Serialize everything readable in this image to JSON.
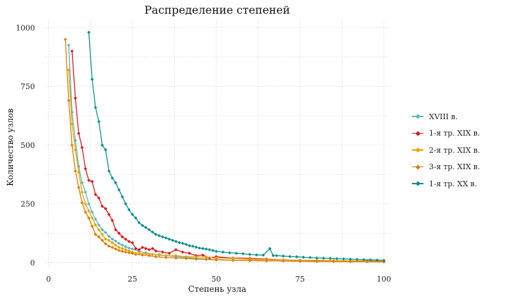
{
  "chart_data": {
    "type": "line",
    "title": "Распределение степеней",
    "xlabel": "Степень узла",
    "ylabel": "Количество узлов",
    "xlim": [
      -1,
      102
    ],
    "ylim": [
      -25,
      1030
    ],
    "x_ticks": [
      0,
      25,
      50,
      75,
      100
    ],
    "x_tick_labels": [
      "0",
      "25",
      "50",
      "75",
      "100"
    ],
    "y_ticks": [
      0,
      250,
      500,
      750,
      1000
    ],
    "y_tick_labels": [
      "0",
      "250",
      "500",
      "750",
      "1000"
    ],
    "grid": true,
    "legend_position": "right",
    "series": [
      {
        "name": "XVIII в.",
        "color": "#5ab4c4",
        "points": [
          [
            6,
            925
          ],
          [
            7,
            640
          ],
          [
            8,
            520
          ],
          [
            9,
            410
          ],
          [
            10,
            340
          ],
          [
            11,
            300
          ],
          [
            12,
            250
          ],
          [
            13,
            215
          ],
          [
            14,
            185
          ],
          [
            15,
            160
          ],
          [
            16,
            140
          ],
          [
            17,
            128
          ],
          [
            18,
            112
          ],
          [
            19,
            100
          ],
          [
            20,
            92
          ],
          [
            21,
            82
          ],
          [
            22,
            75
          ],
          [
            23,
            68
          ],
          [
            24,
            62
          ],
          [
            25,
            58
          ],
          [
            27,
            48
          ],
          [
            29,
            42
          ],
          [
            31,
            36
          ],
          [
            33,
            32
          ],
          [
            35,
            30
          ],
          [
            38,
            26
          ],
          [
            41,
            22
          ],
          [
            44,
            18
          ],
          [
            47,
            15
          ],
          [
            50,
            13
          ],
          [
            55,
            11
          ],
          [
            60,
            9
          ],
          [
            65,
            8
          ],
          [
            70,
            7
          ],
          [
            75,
            6
          ],
          [
            80,
            5
          ],
          [
            85,
            5
          ],
          [
            90,
            4
          ],
          [
            95,
            4
          ],
          [
            100,
            3
          ]
        ]
      },
      {
        "name": "1-я тр. XIX в.",
        "color": "#d7191c",
        "points": [
          [
            7,
            900
          ],
          [
            8,
            700
          ],
          [
            9,
            550
          ],
          [
            10,
            490
          ],
          [
            11,
            400
          ],
          [
            12,
            350
          ],
          [
            13,
            345
          ],
          [
            14,
            290
          ],
          [
            15,
            275
          ],
          [
            16,
            240
          ],
          [
            17,
            230
          ],
          [
            18,
            205
          ],
          [
            19,
            180
          ],
          [
            20,
            140
          ],
          [
            21,
            125
          ],
          [
            22,
            110
          ],
          [
            23,
            100
          ],
          [
            24,
            90
          ],
          [
            25,
            85
          ],
          [
            26,
            60
          ],
          [
            27,
            55
          ],
          [
            28,
            65
          ],
          [
            29,
            60
          ],
          [
            30,
            55
          ],
          [
            31,
            60
          ],
          [
            32,
            50
          ],
          [
            34,
            45
          ],
          [
            36,
            40
          ],
          [
            38,
            55
          ],
          [
            40,
            45
          ],
          [
            42,
            40
          ],
          [
            44,
            30
          ],
          [
            46,
            32
          ],
          [
            48,
            20
          ],
          [
            50,
            25
          ],
          [
            55,
            20
          ],
          [
            60,
            18
          ],
          [
            65,
            15
          ],
          [
            70,
            12
          ],
          [
            75,
            10
          ],
          [
            80,
            8
          ],
          [
            85,
            8
          ],
          [
            90,
            7
          ],
          [
            95,
            6
          ],
          [
            100,
            5
          ]
        ]
      },
      {
        "name": "2-я тр. XIX в.",
        "color": "#e6a300",
        "points": [
          [
            6,
            820
          ],
          [
            7,
            590
          ],
          [
            8,
            480
          ],
          [
            9,
            385
          ],
          [
            10,
            300
          ],
          [
            11,
            250
          ],
          [
            12,
            220
          ],
          [
            13,
            190
          ],
          [
            14,
            160
          ],
          [
            15,
            140
          ],
          [
            16,
            120
          ],
          [
            17,
            100
          ],
          [
            18,
            95
          ],
          [
            19,
            85
          ],
          [
            20,
            75
          ],
          [
            21,
            65
          ],
          [
            22,
            60
          ],
          [
            23,
            55
          ],
          [
            24,
            50
          ],
          [
            25,
            45
          ],
          [
            27,
            40
          ],
          [
            29,
            38
          ],
          [
            31,
            35
          ],
          [
            33,
            35
          ],
          [
            35,
            30
          ],
          [
            38,
            30
          ],
          [
            41,
            25
          ],
          [
            44,
            25
          ],
          [
            47,
            22
          ],
          [
            50,
            20
          ],
          [
            55,
            18
          ],
          [
            60,
            15
          ],
          [
            65,
            13
          ],
          [
            70,
            12
          ],
          [
            75,
            10
          ],
          [
            80,
            10
          ],
          [
            85,
            9
          ],
          [
            90,
            8
          ],
          [
            95,
            8
          ],
          [
            100,
            7
          ]
        ]
      },
      {
        "name": "3-я тр. XIX в.",
        "color": "#e07b00",
        "points": [
          [
            5,
            950
          ],
          [
            6,
            690
          ],
          [
            7,
            500
          ],
          [
            8,
            390
          ],
          [
            9,
            320
          ],
          [
            10,
            255
          ],
          [
            11,
            215
          ],
          [
            12,
            190
          ],
          [
            13,
            155
          ],
          [
            14,
            120
          ],
          [
            15,
            110
          ],
          [
            16,
            95
          ],
          [
            17,
            80
          ],
          [
            18,
            70
          ],
          [
            19,
            65
          ],
          [
            20,
            58
          ],
          [
            21,
            52
          ],
          [
            22,
            48
          ],
          [
            23,
            45
          ],
          [
            24,
            42
          ],
          [
            25,
            40
          ],
          [
            26,
            35
          ],
          [
            28,
            32
          ],
          [
            30,
            30
          ],
          [
            32,
            25
          ],
          [
            35,
            22
          ],
          [
            38,
            20
          ],
          [
            41,
            18
          ],
          [
            44,
            15
          ],
          [
            47,
            14
          ],
          [
            50,
            12
          ],
          [
            55,
            10
          ],
          [
            60,
            9
          ],
          [
            65,
            8
          ],
          [
            70,
            7
          ],
          [
            75,
            6
          ],
          [
            80,
            5
          ],
          [
            85,
            5
          ],
          [
            90,
            4
          ],
          [
            95,
            4
          ],
          [
            100,
            3
          ]
        ]
      },
      {
        "name": "1-я тр. XX в.",
        "color": "#0c8f8f",
        "points": [
          [
            12,
            980
          ],
          [
            13,
            780
          ],
          [
            14,
            660
          ],
          [
            15,
            600
          ],
          [
            16,
            500
          ],
          [
            17,
            480
          ],
          [
            18,
            390
          ],
          [
            19,
            360
          ],
          [
            20,
            340
          ],
          [
            21,
            310
          ],
          [
            22,
            280
          ],
          [
            23,
            250
          ],
          [
            24,
            225
          ],
          [
            25,
            205
          ],
          [
            26,
            190
          ],
          [
            27,
            170
          ],
          [
            28,
            158
          ],
          [
            29,
            150
          ],
          [
            30,
            140
          ],
          [
            31,
            130
          ],
          [
            32,
            120
          ],
          [
            33,
            115
          ],
          [
            34,
            110
          ],
          [
            35,
            105
          ],
          [
            36,
            100
          ],
          [
            37,
            95
          ],
          [
            38,
            90
          ],
          [
            39,
            85
          ],
          [
            40,
            82
          ],
          [
            41,
            78
          ],
          [
            42,
            72
          ],
          [
            43,
            70
          ],
          [
            44,
            66
          ],
          [
            45,
            62
          ],
          [
            46,
            60
          ],
          [
            47,
            58
          ],
          [
            48,
            55
          ],
          [
            49,
            52
          ],
          [
            50,
            48
          ],
          [
            52,
            45
          ],
          [
            54,
            42
          ],
          [
            56,
            40
          ],
          [
            58,
            38
          ],
          [
            60,
            35
          ],
          [
            62,
            33
          ],
          [
            64,
            32
          ],
          [
            66,
            60
          ],
          [
            67,
            30
          ],
          [
            68,
            30
          ],
          [
            70,
            28
          ],
          [
            72,
            26
          ],
          [
            74,
            25
          ],
          [
            76,
            23
          ],
          [
            78,
            22
          ],
          [
            80,
            20
          ],
          [
            82,
            19
          ],
          [
            84,
            18
          ],
          [
            86,
            17
          ],
          [
            88,
            16
          ],
          [
            90,
            15
          ],
          [
            92,
            14
          ],
          [
            94,
            13
          ],
          [
            96,
            12
          ],
          [
            98,
            11
          ],
          [
            100,
            10
          ]
        ]
      }
    ]
  }
}
